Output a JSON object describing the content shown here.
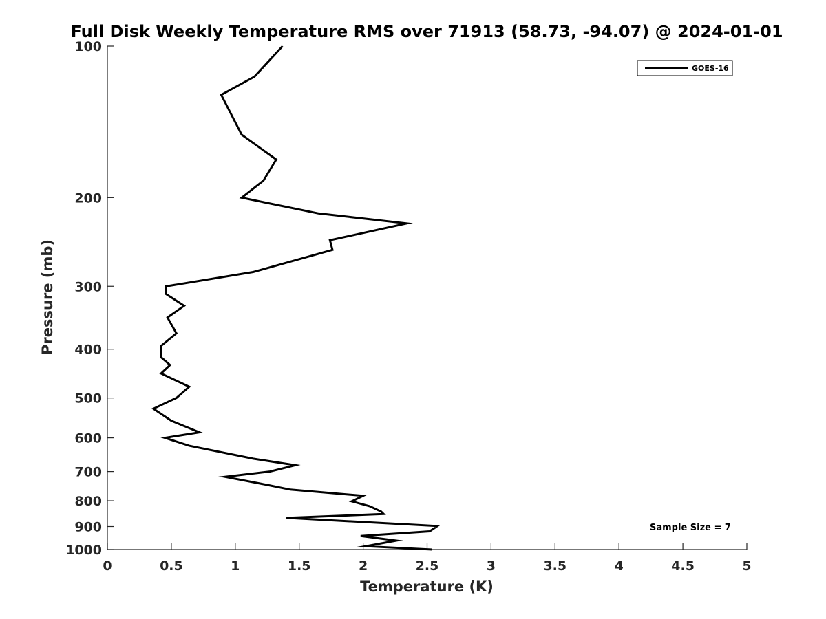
{
  "chart_data": {
    "type": "line",
    "title": "Full Disk Weekly Temperature RMS over 71913 (58.73, -94.07) @ 2024-01-01",
    "xlabel": "Temperature (K)",
    "ylabel": "Pressure (mb)",
    "xlim": [
      0,
      5
    ],
    "ylim": [
      1000,
      100
    ],
    "yscale": "log",
    "y_reversed": true,
    "xticks": [
      0,
      0.5,
      1,
      1.5,
      2,
      2.5,
      3,
      3.5,
      4,
      4.5,
      5
    ],
    "xtick_labels": [
      "0",
      "0.5",
      "1",
      "1.5",
      "2",
      "2.5",
      "3",
      "3.5",
      "4",
      "4.5",
      "5"
    ],
    "yticks": [
      100,
      200,
      300,
      400,
      500,
      600,
      700,
      800,
      900,
      1000
    ],
    "ytick_labels": [
      "100",
      "200",
      "300",
      "400",
      "500",
      "600",
      "700",
      "800",
      "900",
      "1000"
    ],
    "grid": false,
    "legend": {
      "position": "top-right",
      "entries": [
        "GOES-16"
      ]
    },
    "annotation": "Sample Size = 7",
    "line_color": "#000000",
    "series": [
      {
        "name": "GOES-16",
        "x": [
          1.37,
          1.15,
          0.89,
          1.05,
          1.32,
          1.22,
          1.05,
          1.65,
          2.34,
          1.74,
          1.76,
          1.14,
          0.46,
          0.46,
          0.6,
          0.47,
          0.54,
          0.42,
          0.42,
          0.49,
          0.42,
          0.64,
          0.54,
          0.36,
          0.5,
          0.72,
          0.45,
          0.64,
          1.14,
          1.47,
          1.27,
          0.92,
          1.26,
          1.43,
          2.0,
          1.91,
          2.05,
          2.14,
          2.16,
          1.4,
          2.58,
          2.52,
          1.98,
          2.26,
          2.02,
          2.54
        ],
        "y": [
          100,
          115,
          125,
          150,
          168,
          185,
          200,
          215,
          225,
          243,
          254,
          281,
          300,
          311,
          328,
          346,
          372,
          394,
          415,
          430,
          447,
          475,
          500,
          525,
          555,
          585,
          600,
          622,
          660,
          680,
          700,
          717,
          745,
          760,
          782,
          802,
          820,
          840,
          850,
          865,
          898,
          920,
          940,
          960,
          985,
          1000
        ]
      }
    ]
  }
}
